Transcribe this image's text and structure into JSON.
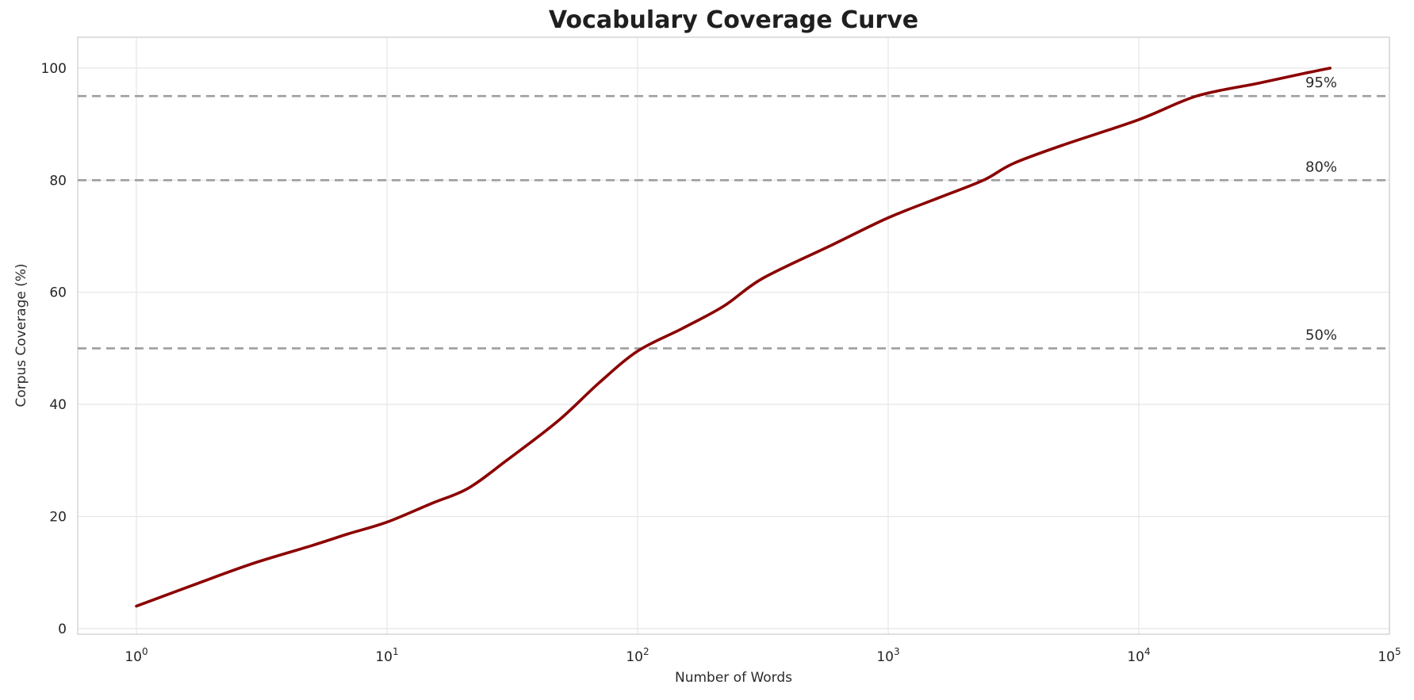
{
  "chart_data": {
    "type": "line",
    "title": "Vocabulary Coverage Curve",
    "xlabel": "Number of Words",
    "ylabel": "Corpus Coverage (%)",
    "x_scale": "log",
    "xlim": [
      0.583,
      100000
    ],
    "ylim": [
      -1,
      105.5
    ],
    "grid": true,
    "legend": false,
    "x_ticks": [
      {
        "v": 1,
        "base": "10",
        "exp": "0"
      },
      {
        "v": 10,
        "base": "10",
        "exp": "1"
      },
      {
        "v": 100,
        "base": "10",
        "exp": "2"
      },
      {
        "v": 1000,
        "base": "10",
        "exp": "3"
      },
      {
        "v": 10000,
        "base": "10",
        "exp": "4"
      },
      {
        "v": 100000,
        "base": "10",
        "exp": "5"
      }
    ],
    "y_ticks": [
      {
        "v": 0,
        "label": "0"
      },
      {
        "v": 20,
        "label": "20"
      },
      {
        "v": 40,
        "label": "40"
      },
      {
        "v": 60,
        "label": "60"
      },
      {
        "v": 80,
        "label": "80"
      },
      {
        "v": 100,
        "label": "100"
      }
    ],
    "series": [
      {
        "name": "coverage-curve",
        "color": "#8B0000",
        "line_width": 3.6,
        "points": [
          [
            1,
            4.0
          ],
          [
            2,
            9.0
          ],
          [
            3,
            11.8
          ],
          [
            5,
            14.8
          ],
          [
            7,
            16.9
          ],
          [
            10,
            19.0
          ],
          [
            15,
            22.3
          ],
          [
            21,
            25.0
          ],
          [
            30,
            30.0
          ],
          [
            48,
            37.0
          ],
          [
            70,
            43.8
          ],
          [
            100,
            49.5
          ],
          [
            150,
            53.5
          ],
          [
            220,
            57.5
          ],
          [
            316,
            62.5
          ],
          [
            600,
            68.5
          ],
          [
            1000,
            73.3
          ],
          [
            1600,
            76.9
          ],
          [
            2400,
            80.0
          ],
          [
            3162,
            83.0
          ],
          [
            5000,
            86.3
          ],
          [
            10000,
            90.8
          ],
          [
            17000,
            95.0
          ],
          [
            30000,
            97.3
          ],
          [
            45000,
            99.0
          ],
          [
            58000,
            100.0
          ]
        ]
      }
    ],
    "reference_lines": [
      {
        "value": 50,
        "label": "50%"
      },
      {
        "value": 80,
        "label": "80%"
      },
      {
        "value": 95,
        "label": "95%"
      }
    ],
    "colors": {
      "line": "#8B0000",
      "reference": "#9E9E9E",
      "grid": "#E6E6E6",
      "spine": "#CFCFCF",
      "tick_text": "#262626",
      "annotation_text": "#2B2B2B",
      "title_text": "#1F1F1F",
      "background": "#FFFFFF"
    }
  }
}
